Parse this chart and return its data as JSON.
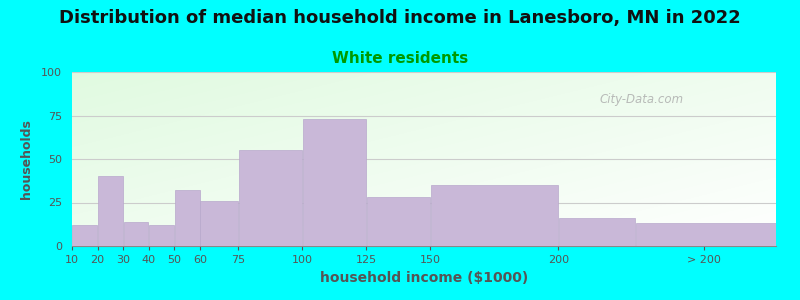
{
  "title": "Distribution of median household income in Lanesboro, MN in 2022",
  "subtitle": "White residents",
  "xlabel": "household income ($1000)",
  "ylabel": "households",
  "background_outer": "#00FFFF",
  "bar_color": "#c9b8d8",
  "bar_edge_color": "#b8a8cc",
  "title_fontsize": 13,
  "subtitle_fontsize": 11,
  "subtitle_color": "#009900",
  "xlabel_fontsize": 10,
  "ylabel_fontsize": 9,
  "values": [
    12,
    40,
    14,
    12,
    32,
    26,
    55,
    73,
    28,
    35,
    16,
    13
  ],
  "bar_lefts": [
    10,
    20,
    30,
    40,
    50,
    60,
    75,
    100,
    125,
    150,
    200,
    230
  ],
  "bar_widths": [
    10,
    10,
    10,
    10,
    10,
    15,
    25,
    25,
    25,
    50,
    30,
    55
  ],
  "xlim": [
    10,
    285
  ],
  "ylim": [
    0,
    100
  ],
  "yticks": [
    0,
    25,
    50,
    75,
    100
  ],
  "xtick_positions": [
    10,
    20,
    30,
    40,
    50,
    60,
    75,
    100,
    125,
    150,
    200,
    257
  ],
  "xtick_labels": [
    "10",
    "20",
    "30",
    "40",
    "50",
    "60",
    "75",
    "100",
    "125",
    "150",
    "200",
    "> 200"
  ],
  "watermark": "City-Data.com",
  "grid_color": "#cccccc",
  "bg_gradient_left": "#d8edd8",
  "bg_gradient_right": "#f0f8f0"
}
